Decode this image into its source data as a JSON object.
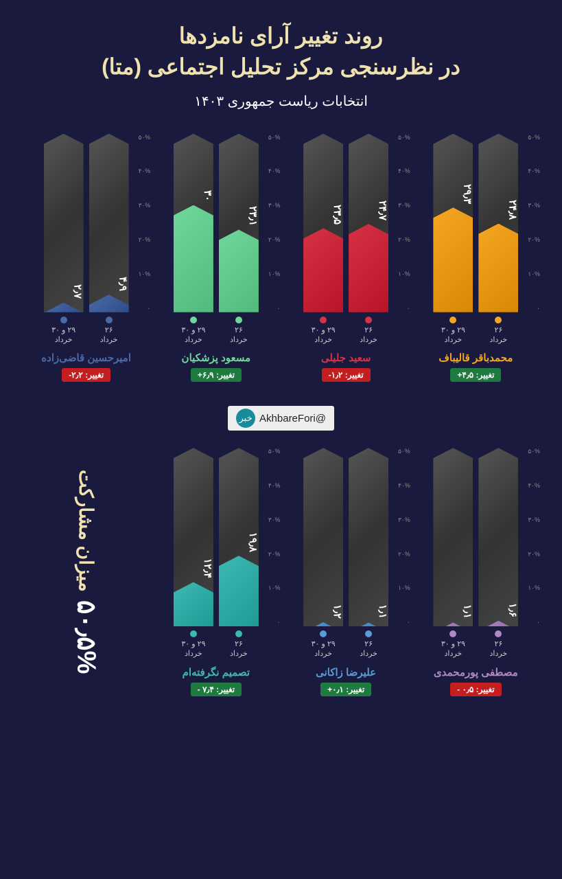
{
  "header": {
    "title_line1": "روند تغییر آرای نامزدها",
    "title_line2": "در نظرسنجی مرکز تحلیل اجتماعی (متا)",
    "title_color": "#f0e2b0",
    "subtitle": "انتخابات ریاست جمهوری ۱۴۰۳",
    "subtitle_color": "#ffffff"
  },
  "chart_style": {
    "ymax": 50,
    "ytick_labels": [
      "۵۰%",
      "۴۰%",
      "۳۰%",
      "۲۰%",
      "۱۰%",
      "۰"
    ],
    "bar_bg": "#444444"
  },
  "x_labels": {
    "d1": "۲۶\nخرداد",
    "d2": "۲۹ و ۳۰\nخرداد"
  },
  "candidates": [
    {
      "name": "محمدباقر قالیباف",
      "color": "#f5a623",
      "v1": 24.8,
      "v1_label": "۲۴٫۸",
      "v2": 29.3,
      "v2_label": "۲۹٫۳",
      "change_label": "تغییر: ۴٫۵+",
      "change_color": "#1e7a3e"
    },
    {
      "name": "سعید جلیلی",
      "color": "#d63246",
      "v1": 24.7,
      "v1_label": "۲۴٫۷",
      "v2": 23.5,
      "v2_label": "۲۳٫۵",
      "change_label": "تغییر: ۱٫۲-",
      "change_color": "#c41e1e"
    },
    {
      "name": "مسعود پزشکیان",
      "color": "#6fd89a",
      "v1": 23.1,
      "v1_label": "۲۳٫۱",
      "v2": 30.0,
      "v2_label": "۳۰",
      "change_label": "تغییر: ۶٫۹+",
      "change_color": "#1e7a3e"
    },
    {
      "name": "امیرحسین قاضی‌زاده",
      "color": "#4a6ba8",
      "v1": 4.9,
      "v1_label": "۴٫۹",
      "v2": 2.7,
      "v2_label": "۲٫۷",
      "change_label": "تغییر: ۲٫۲-",
      "change_color": "#c41e1e"
    },
    {
      "name": "مصطفی پورمحمدی",
      "color": "#b088c4",
      "v1": 1.6,
      "v1_label": "۱٫۶",
      "v2": 1.1,
      "v2_label": "۱٫۱",
      "change_label": "تغییر: ۰٫۵ -",
      "change_color": "#c41e1e"
    },
    {
      "name": "علیرضا زاکانی",
      "color": "#5b9bd5",
      "v1": 1.1,
      "v1_label": "۱٫۱",
      "v2": 1.2,
      "v2_label": "۱٫۲",
      "change_label": "تغییر: ۰٫۱+",
      "change_color": "#1e7a3e"
    },
    {
      "name": "تصمیم نگرفته‌ام",
      "color": "#3eb8b3",
      "v1": 19.8,
      "v1_label": "۱۹٫۸",
      "v2": 12.4,
      "v2_label": "۱۲٫۴",
      "change_label": "تغییر: ۷٫۴ -",
      "change_color": "#1e7a3e"
    }
  ],
  "participation": {
    "label": "میزان مشارکت",
    "value": "۵۰٫۵%",
    "value_color": "#ffffff"
  },
  "handle": {
    "text": "@AkhbareFori",
    "logo_text": "خبر"
  }
}
